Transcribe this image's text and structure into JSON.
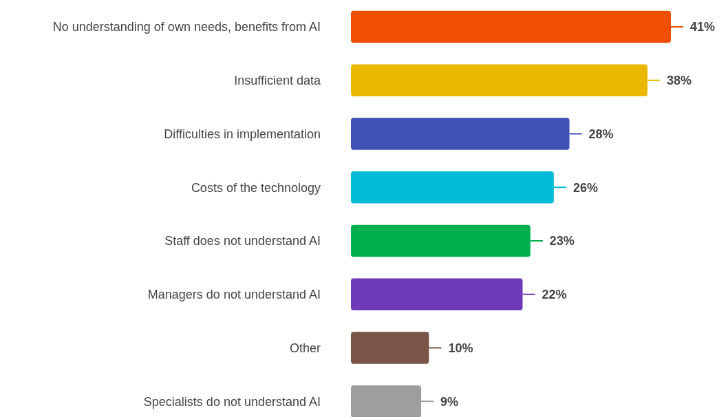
{
  "chart_data": {
    "type": "bar",
    "orientation": "horizontal",
    "categories": [
      "No understanding of own needs, benefits from AI",
      "Insufficient data",
      "Difficulties in implementation",
      "Costs of the technology",
      "Staff does not understand AI",
      "Managers do not understand AI",
      "Other",
      "Specialists do not understand AI"
    ],
    "values": [
      41,
      38,
      28,
      26,
      23,
      22,
      10,
      9
    ],
    "colors": [
      "#f04e00",
      "#ebb800",
      "#3f51b5",
      "#00bcd4",
      "#00b04f",
      "#6f3ab8",
      "#7b5448",
      "#9e9e9e"
    ],
    "value_labels": [
      "41%",
      "38%",
      "28%",
      "26%",
      "23%",
      "22%",
      "10%",
      "9%"
    ]
  }
}
